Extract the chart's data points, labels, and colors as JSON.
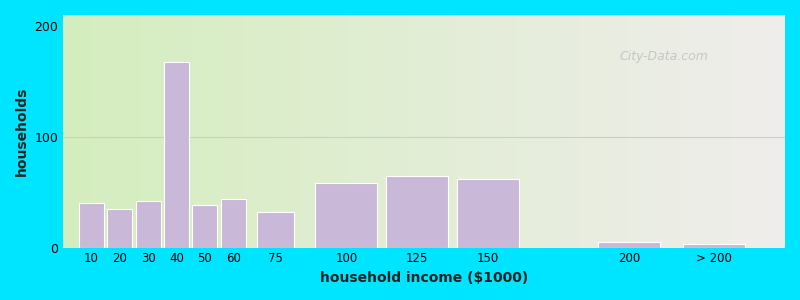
{
  "xlabel": "household income ($1000)",
  "ylabel": "households",
  "categories": [
    "10",
    "20",
    "30",
    "40",
    "50",
    "60",
    "75",
    "100",
    "125",
    "150",
    "200",
    "> 200"
  ],
  "x_positions": [
    10,
    20,
    30,
    40,
    50,
    60,
    75,
    100,
    125,
    150,
    200,
    230
  ],
  "bar_widths": [
    10,
    10,
    10,
    10,
    10,
    10,
    15,
    25,
    25,
    25,
    25,
    25
  ],
  "values": [
    40,
    35,
    42,
    168,
    38,
    44,
    32,
    58,
    65,
    62,
    5,
    3
  ],
  "bar_color": "#c9b8d8",
  "bar_edge_color": "#ffffff",
  "background_outer": "#00e5ff",
  "background_inner_left": "#d4edbe",
  "background_inner_right": "#f0eeec",
  "ylim": [
    0,
    210
  ],
  "yticks": [
    0,
    100,
    200
  ],
  "xlim": [
    0,
    255
  ],
  "title_fontsize": 14,
  "subtitle_fontsize": 11,
  "subtitle_color": "#1a7abf",
  "axis_label_fontsize": 10,
  "watermark_text": "City-Data.com",
  "watermark_color": "#c0c0c0",
  "xtick_labels_x": [
    10,
    20,
    30,
    40,
    50,
    60,
    75,
    100,
    125,
    150,
    200,
    230
  ],
  "xtick_labels": [
    "10",
    "20",
    "30",
    "40",
    "50",
    "60",
    "75",
    "100",
    "125",
    "150",
    "200",
    "> 200"
  ]
}
